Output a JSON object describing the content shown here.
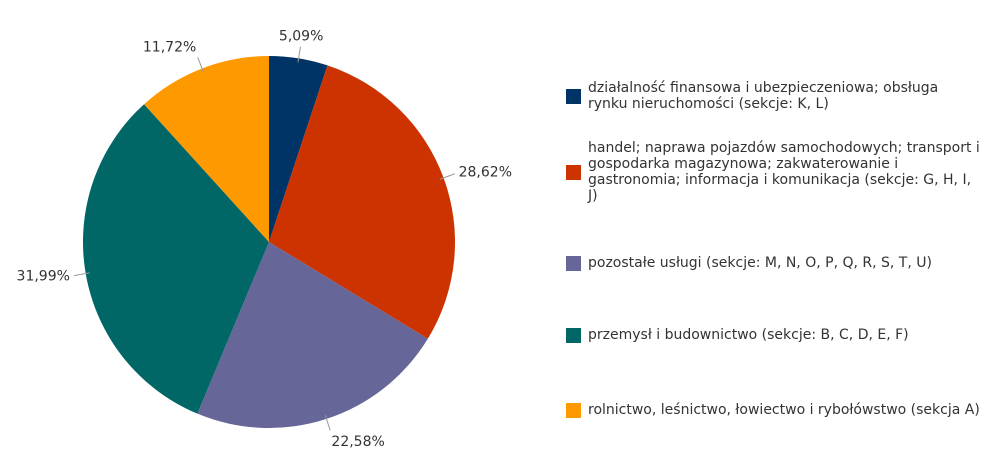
{
  "chart_data": {
    "type": "pie",
    "categories": [
      "działalność finansowa i ubezpieczeniowa; obsługa rynku nieruchomości (sekcje: K, L)",
      "handel; naprawa pojazdów samochodowych; transport i gospodarka magazynowa; zakwaterowanie i gastronomia; informacja i komunikacja (sekcje: G, H, I, J)",
      "pozostałe usługi (sekcje: M, N, O, P, Q, R, S, T, U)",
      "przemysł i budownictwo (sekcje: B, C, D, E, F)",
      "rolnictwo, leśnictwo, łowiectwo i rybołówstwo (sekcja A)"
    ],
    "values": [
      5.09,
      28.62,
      22.58,
      31.99,
      11.72
    ],
    "value_labels": [
      "5,09%",
      "28,62%",
      "22,58%",
      "31,99%",
      "11,72%"
    ],
    "colors": [
      "#003366",
      "#cc3300",
      "#666699",
      "#006666",
      "#ff9900"
    ],
    "legend": "right"
  }
}
